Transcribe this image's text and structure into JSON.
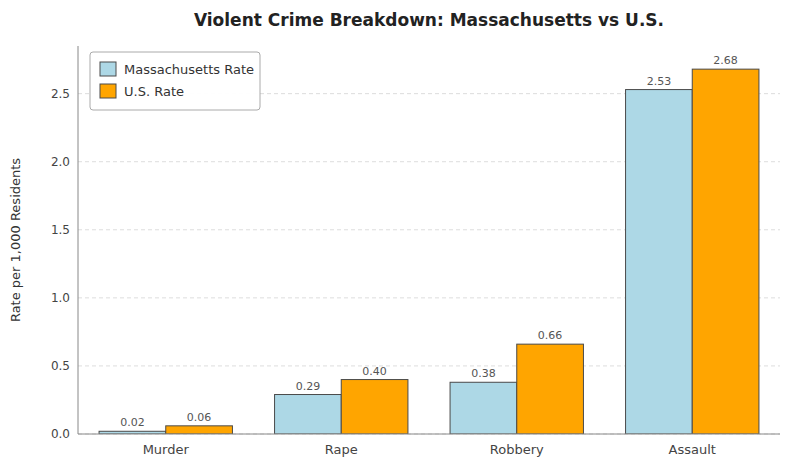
{
  "chart_data": {
    "type": "bar",
    "title": "Violent Crime Breakdown: Massachusetts vs U.S.",
    "categories": [
      "Murder",
      "Rape",
      "Robbery",
      "Assault"
    ],
    "series": [
      {
        "name": "Massachusetts Rate",
        "color": "#add8e6",
        "values": [
          0.02,
          0.29,
          0.38,
          2.53
        ],
        "value_labels": [
          "0.02",
          "0.29",
          "0.38",
          "2.53"
        ]
      },
      {
        "name": "U.S. Rate",
        "color": "#FFA500",
        "values": [
          0.06,
          0.4,
          0.66,
          2.68
        ],
        "value_labels": [
          "0.06",
          "0.40",
          "0.66",
          "2.68"
        ]
      }
    ],
    "ylabel": "Rate per 1,000 Residents",
    "ylim": [
      0,
      2.85
    ],
    "yticks": [
      {
        "value": 0.0,
        "label": "0.0"
      },
      0.5,
      {
        "value": 1.0,
        "label": "1.0"
      },
      1.5,
      {
        "value": 2.0,
        "label": "2.0"
      },
      2.5
    ],
    "grid": true,
    "legend": "upper left",
    "data_labels": true
  }
}
